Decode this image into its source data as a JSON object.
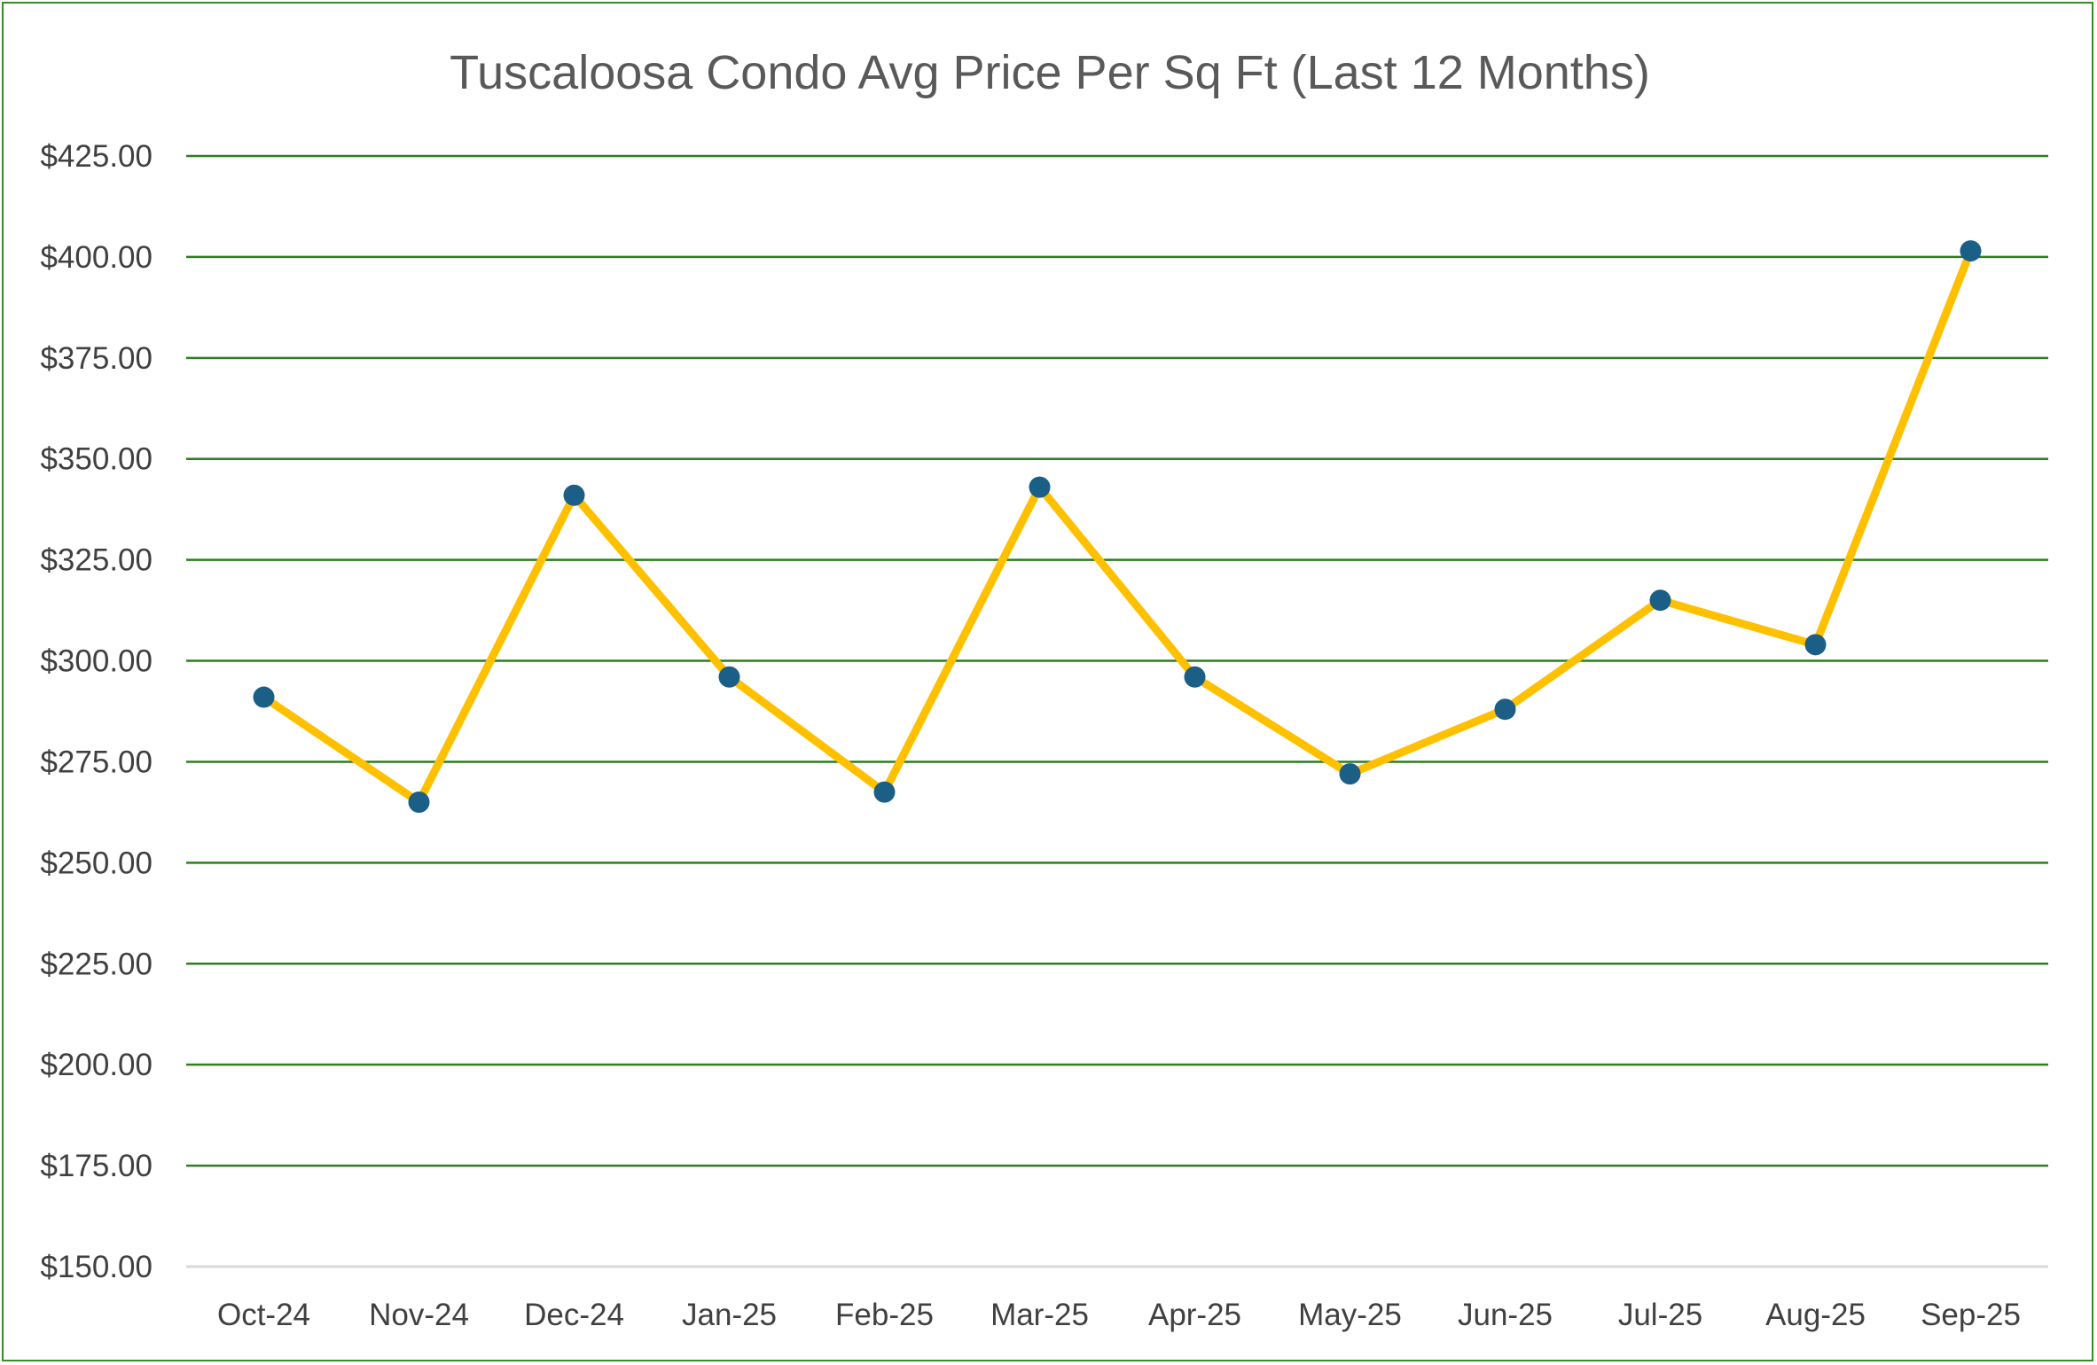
{
  "chart_data": {
    "type": "line",
    "title": "Tuscaloosa Condo Avg Price Per Sq Ft (Last 12 Months)",
    "categories": [
      "Oct-24",
      "Nov-24",
      "Dec-24",
      "Jan-25",
      "Feb-25",
      "Mar-25",
      "Apr-25",
      "May-25",
      "Jun-25",
      "Jul-25",
      "Aug-25",
      "Sep-25"
    ],
    "series": [
      {
        "values": [
          291,
          265,
          341,
          296,
          267.5,
          343,
          296,
          272,
          288,
          315,
          304,
          401.5
        ]
      }
    ],
    "ylim": [
      150,
      425
    ],
    "yticks": [
      150,
      175,
      200,
      225,
      250,
      275,
      300,
      325,
      350,
      375,
      400,
      425
    ],
    "ytick_labels": [
      "$150.00",
      "$175.00",
      "$200.00",
      "$225.00",
      "$250.00",
      "$275.00",
      "$300.00",
      "$325.00",
      "$350.00",
      "$375.00",
      "$400.00",
      "$425.00"
    ],
    "grid": true,
    "legend": "none",
    "colors": {
      "line": "#ffc000",
      "marker": "#1b5e86",
      "grid": "#2e7d1f",
      "axis": "#d9d9d9",
      "frame": "#3b8a2a"
    }
  }
}
